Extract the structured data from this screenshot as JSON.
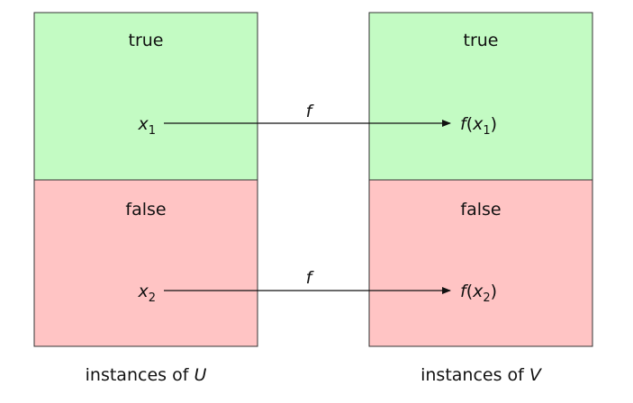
{
  "colors": {
    "true_fill": "#c3fbc3",
    "false_fill": "#ffc4c4",
    "stroke": "#333333"
  },
  "left_panel": {
    "true_label": "true",
    "false_label": "false",
    "top_element": {
      "var": "x",
      "sub": "1"
    },
    "bottom_element": {
      "var": "x",
      "sub": "2"
    },
    "caption_prefix": "instances of ",
    "caption_var": "U"
  },
  "right_panel": {
    "true_label": "true",
    "false_label": "false",
    "top_element": {
      "fn": "f",
      "open": "(",
      "var": "x",
      "sub": "1",
      "close": ")"
    },
    "bottom_element": {
      "fn": "f",
      "open": "(",
      "var": "x",
      "sub": "2",
      "close": ")"
    },
    "caption_prefix": "instances of ",
    "caption_var": "V"
  },
  "arrows": [
    {
      "label": "f"
    },
    {
      "label": "f"
    }
  ]
}
